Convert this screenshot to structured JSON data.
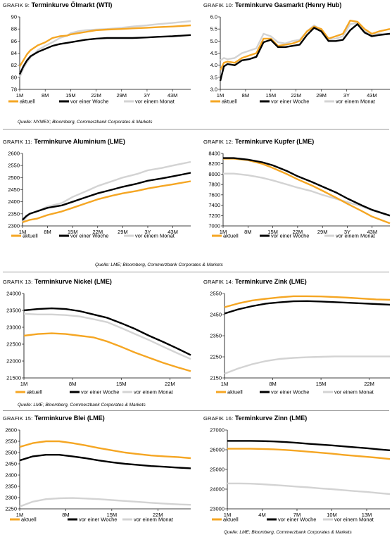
{
  "colors": {
    "aktuell": "#F5A623",
    "woche": "#000000",
    "monat": "#D3D3D3"
  },
  "sources": {
    "s1": "Quelle: NYMEX; Bloomberg, Commerzbank Corporates & Markets",
    "s2": "Quelle: LME; Bloomberg, Commerzbank Corporates & Markets",
    "s3": "Quelle: LME; Bloomberg, Commerzbank Corporates & Markets",
    "s4": "Quelle: LME; Bloomberg, Commerzbank Corporates & Markets"
  },
  "chart_data": [
    {
      "type": "line",
      "title_prefix": "GRAFIK 9:",
      "title": "Terminkurve Ölmarkt (WTI)",
      "categories": [
        "1M",
        "8M",
        "15M",
        "22M",
        "29M",
        "3Y",
        "43M"
      ],
      "ylim": [
        78,
        90
      ],
      "yticks": [
        78,
        80,
        82,
        84,
        86,
        88,
        90
      ],
      "x": [
        1,
        2,
        3,
        4,
        6,
        8,
        10,
        12,
        14,
        15,
        17,
        19,
        22,
        25,
        29,
        32,
        36,
        39,
        43,
        48
      ],
      "series": [
        {
          "name": "aktuell",
          "values": [
            81.8,
            82.8,
            83.8,
            84.5,
            85.3,
            85.8,
            86.5,
            86.8,
            86.9,
            87.1,
            87.3,
            87.5,
            87.8,
            87.9,
            88.0,
            88.1,
            88.2,
            88.3,
            88.4,
            88.6
          ]
        },
        {
          "name": "vor einer Woche",
          "values": [
            80.5,
            81.8,
            82.8,
            83.5,
            84.2,
            84.7,
            85.2,
            85.5,
            85.7,
            85.8,
            86.0,
            86.2,
            86.4,
            86.5,
            86.5,
            86.5,
            86.6,
            86.7,
            86.8,
            87.0
          ]
        },
        {
          "name": "vor einem Monat",
          "values": [
            80.0,
            81.5,
            82.5,
            83.3,
            84.5,
            85.2,
            85.8,
            86.5,
            86.9,
            87.3,
            87.6,
            87.8,
            87.9,
            88.0,
            88.2,
            88.4,
            88.6,
            88.8,
            89.0,
            89.3
          ]
        }
      ]
    },
    {
      "type": "line",
      "title_prefix": "GRAFIK 10:",
      "title": "Terminkurve Gasmarkt (Henry Hub)",
      "categories": [
        "1M",
        "8M",
        "15M",
        "22M",
        "29M",
        "3Y",
        "43M"
      ],
      "ylim": [
        3.0,
        6.0
      ],
      "yticks": [
        "3.0",
        "3.5",
        "4.0",
        "4.5",
        "5.0",
        "5.5",
        "6.0"
      ],
      "x": [
        1,
        2,
        3,
        5,
        7,
        9,
        11,
        13,
        15,
        17,
        19,
        21,
        23,
        25,
        27,
        29,
        31,
        33,
        35,
        37,
        39,
        41,
        43,
        45,
        48
      ],
      "series": [
        {
          "name": "aktuell",
          "values": [
            3.8,
            4.1,
            4.15,
            4.1,
            4.3,
            4.4,
            4.5,
            5.1,
            5.1,
            4.8,
            4.85,
            4.9,
            5.0,
            5.4,
            5.6,
            5.5,
            5.1,
            5.2,
            5.3,
            5.85,
            5.8,
            5.5,
            5.3,
            5.4,
            5.5
          ]
        },
        {
          "name": "vor einer Woche",
          "values": [
            3.35,
            3.95,
            4.05,
            4.0,
            4.2,
            4.25,
            4.35,
            4.95,
            5.05,
            4.75,
            4.75,
            4.8,
            4.85,
            5.25,
            5.55,
            5.4,
            5.0,
            5.0,
            5.05,
            5.45,
            5.7,
            5.35,
            5.2,
            5.25,
            5.3
          ]
        },
        {
          "name": "vor einem Monat",
          "values": [
            4.2,
            4.3,
            4.25,
            4.3,
            4.5,
            4.6,
            4.7,
            5.3,
            5.2,
            4.95,
            4.9,
            5.0,
            5.05,
            5.4,
            5.65,
            5.45,
            5.05,
            5.1,
            5.2,
            5.7,
            5.75,
            5.4,
            5.25,
            5.3,
            5.3
          ]
        }
      ]
    },
    {
      "type": "line",
      "title_prefix": "GRAFIK 11:",
      "title": "Terminkurve Aluminium (LME)",
      "categories": [
        "1M",
        "8M",
        "15M",
        "22M",
        "29M",
        "3Y",
        "43M"
      ],
      "ylim": [
        2300,
        2600
      ],
      "yticks": [
        2300,
        2350,
        2400,
        2450,
        2500,
        2550,
        2600
      ],
      "x": [
        1,
        2,
        3,
        5,
        8,
        12,
        15,
        19,
        22,
        26,
        29,
        33,
        36,
        40,
        43,
        48
      ],
      "series": [
        {
          "name": "aktuell",
          "values": [
            2315,
            2320,
            2325,
            2330,
            2345,
            2360,
            2375,
            2395,
            2410,
            2425,
            2435,
            2445,
            2455,
            2465,
            2472,
            2485
          ]
        },
        {
          "name": "vor einer Woche",
          "values": [
            2325,
            2340,
            2350,
            2360,
            2375,
            2385,
            2400,
            2420,
            2435,
            2450,
            2462,
            2475,
            2487,
            2497,
            2505,
            2520
          ]
        },
        {
          "name": "vor einem Monat",
          "values": [
            2315,
            2335,
            2350,
            2360,
            2380,
            2395,
            2420,
            2445,
            2465,
            2485,
            2500,
            2515,
            2530,
            2540,
            2550,
            2565
          ]
        }
      ]
    },
    {
      "type": "line",
      "title_prefix": "GRAFIK 12:",
      "title": "Terminkurve Kupfer (LME)",
      "categories": [
        "1M",
        "8M",
        "15M",
        "22M",
        "29M",
        "3Y",
        "43M"
      ],
      "ylim": [
        7000,
        8400
      ],
      "yticks": [
        7000,
        7200,
        7400,
        7600,
        7800,
        8000,
        8200,
        8400
      ],
      "x": [
        1,
        4,
        8,
        12,
        15,
        19,
        22,
        26,
        29,
        33,
        36,
        40,
        43,
        48
      ],
      "series": [
        {
          "name": "aktuell",
          "values": [
            8300,
            8300,
            8270,
            8200,
            8120,
            8000,
            7900,
            7780,
            7680,
            7540,
            7430,
            7290,
            7180,
            7050
          ]
        },
        {
          "name": "vor einer Woche",
          "values": [
            8310,
            8310,
            8280,
            8230,
            8170,
            8060,
            7960,
            7850,
            7760,
            7640,
            7530,
            7400,
            7310,
            7200
          ]
        },
        {
          "name": "vor einem Monat",
          "values": [
            8010,
            8010,
            7980,
            7930,
            7880,
            7800,
            7740,
            7670,
            7600,
            7520,
            7460,
            7380,
            7300,
            7200
          ]
        }
      ]
    },
    {
      "type": "line",
      "title_prefix": "GRAFIK 13:",
      "title": "Terminkurve Nickel (LME)",
      "categories": [
        "1M",
        "8M",
        "15M",
        "22M"
      ],
      "ylim": [
        21500,
        24000
      ],
      "yticks": [
        21500,
        22000,
        22500,
        23000,
        23500,
        24000
      ],
      "x": [
        1,
        3,
        5,
        7,
        9,
        11,
        13,
        15,
        17,
        19,
        21,
        23,
        25
      ],
      "series": [
        {
          "name": "aktuell",
          "values": [
            22750,
            22800,
            22820,
            22800,
            22750,
            22700,
            22580,
            22420,
            22250,
            22100,
            21950,
            21820,
            21700
          ]
        },
        {
          "name": "vor einer Woche",
          "values": [
            23500,
            23540,
            23560,
            23540,
            23480,
            23380,
            23280,
            23120,
            22950,
            22750,
            22570,
            22380,
            22180
          ]
        },
        {
          "name": "vor einem Monat",
          "values": [
            23400,
            23380,
            23380,
            23360,
            23320,
            23240,
            23150,
            22980,
            22800,
            22620,
            22430,
            22240,
            22060
          ]
        }
      ]
    },
    {
      "type": "line",
      "title_prefix": "GRAFIK 14:",
      "title": "Terminkurve Zink (LME)",
      "categories": [
        "1M",
        "8M",
        "15M",
        "22M"
      ],
      "ylim": [
        2150,
        2550
      ],
      "yticks": [
        2150,
        2250,
        2350,
        2450,
        2550
      ],
      "x": [
        1,
        3,
        5,
        7,
        9,
        11,
        13,
        15,
        17,
        19,
        21,
        23,
        25
      ],
      "series": [
        {
          "name": "aktuell",
          "values": [
            2485,
            2503,
            2517,
            2525,
            2532,
            2537,
            2537,
            2536,
            2533,
            2530,
            2526,
            2522,
            2520
          ]
        },
        {
          "name": "vor einer Woche",
          "values": [
            2455,
            2475,
            2490,
            2502,
            2508,
            2513,
            2514,
            2512,
            2509,
            2506,
            2503,
            2500,
            2497
          ]
        },
        {
          "name": "vor einem Monat",
          "values": [
            2170,
            2195,
            2215,
            2230,
            2240,
            2245,
            2248,
            2250,
            2252,
            2252,
            2252,
            2252,
            2252
          ]
        }
      ]
    },
    {
      "type": "line",
      "title_prefix": "GRAFIK 15:",
      "title": "Terminkurve Blei (LME)",
      "categories": [
        "1M",
        "8M",
        "15M",
        "22M"
      ],
      "ylim": [
        2250,
        2600
      ],
      "yticks": [
        2250,
        2300,
        2350,
        2400,
        2450,
        2500,
        2550,
        2600
      ],
      "x": [
        1,
        3,
        5,
        7,
        9,
        11,
        13,
        15,
        17,
        19,
        21,
        23,
        25,
        27
      ],
      "series": [
        {
          "name": "aktuell",
          "values": [
            2525,
            2542,
            2550,
            2550,
            2542,
            2532,
            2520,
            2510,
            2500,
            2493,
            2487,
            2483,
            2480,
            2475
          ]
        },
        {
          "name": "vor einer Woche",
          "values": [
            2465,
            2483,
            2490,
            2490,
            2483,
            2475,
            2465,
            2457,
            2450,
            2445,
            2440,
            2437,
            2433,
            2430
          ]
        },
        {
          "name": "vor einem Monat",
          "values": [
            2260,
            2282,
            2293,
            2297,
            2298,
            2296,
            2293,
            2289,
            2285,
            2281,
            2277,
            2273,
            2270,
            2268
          ]
        }
      ]
    },
    {
      "type": "line",
      "title_prefix": "GRAFIK 16:",
      "title": "Terminkurve Zinn (LME)",
      "categories": [
        "1M",
        "4M",
        "7M",
        "10M",
        "13M"
      ],
      "ylim": [
        23000,
        27000
      ],
      "yticks": [
        23000,
        24000,
        25000,
        26000,
        27000
      ],
      "x": [
        1,
        2,
        3,
        4,
        5,
        6,
        7,
        8,
        9,
        10,
        11,
        12,
        13,
        14,
        15
      ],
      "series": [
        {
          "name": "aktuell",
          "values": [
            26050,
            26050,
            26050,
            26040,
            26020,
            25990,
            25950,
            25900,
            25850,
            25800,
            25740,
            25690,
            25640,
            25590,
            25530
          ]
        },
        {
          "name": "vor einer Woche",
          "values": [
            26450,
            26450,
            26450,
            26440,
            26420,
            26390,
            26350,
            26300,
            26260,
            26220,
            26170,
            26120,
            26080,
            26020,
            25970
          ]
        },
        {
          "name": "vor einem Monat",
          "values": [
            24290,
            24290,
            24280,
            24250,
            24210,
            24170,
            24130,
            24090,
            24040,
            24000,
            23950,
            23900,
            23860,
            23800,
            23750
          ]
        }
      ]
    }
  ]
}
